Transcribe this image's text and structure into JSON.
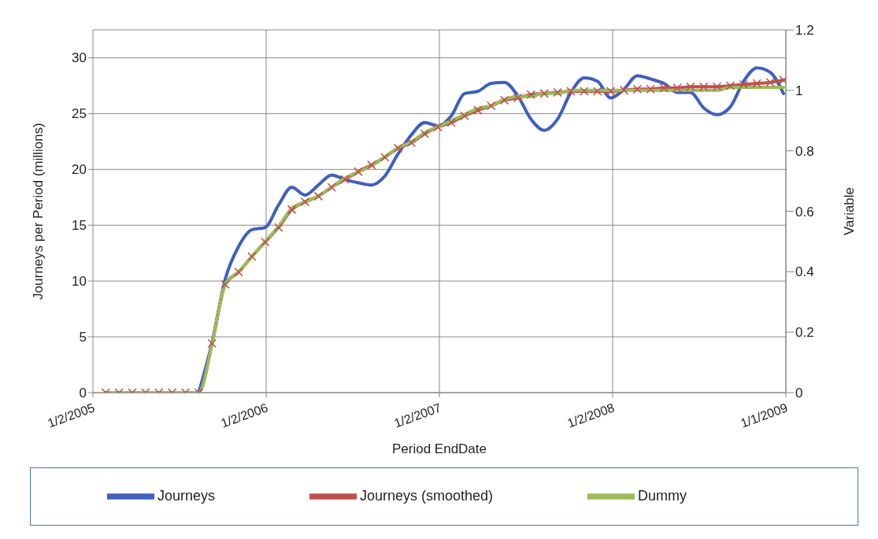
{
  "chart_data": {
    "type": "line",
    "xlabel": "Period EndDate",
    "ylabel": "Journeys per Period  (millions)",
    "y2label": "Variable",
    "x": [
      "2005-01-29",
      "2005-02-26",
      "2005-03-26",
      "2005-04-23",
      "2005-05-21",
      "2005-06-18",
      "2005-07-16",
      "2005-08-13",
      "2005-09-10",
      "2005-10-08",
      "2005-11-05",
      "2005-12-03",
      "2005-12-31",
      "2006-01-28",
      "2006-02-25",
      "2006-03-25",
      "2006-04-22",
      "2006-05-20",
      "2006-06-17",
      "2006-07-15",
      "2006-08-12",
      "2006-09-09",
      "2006-10-07",
      "2006-11-04",
      "2006-12-02",
      "2006-12-30",
      "2007-01-27",
      "2007-02-24",
      "2007-03-24",
      "2007-04-21",
      "2007-05-19",
      "2007-06-16",
      "2007-07-14",
      "2007-08-11",
      "2007-09-08",
      "2007-10-06",
      "2007-11-03",
      "2007-12-01",
      "2007-12-29",
      "2008-01-26",
      "2008-02-23",
      "2008-03-22",
      "2008-04-19",
      "2008-05-17",
      "2008-06-14",
      "2008-07-12",
      "2008-08-09",
      "2008-09-06",
      "2008-10-04",
      "2008-11-01",
      "2008-11-29",
      "2008-12-27"
    ],
    "series": [
      {
        "name": "Journeys",
        "color": "#3f5fc0",
        "marker": "none",
        "values": [
          null,
          null,
          null,
          null,
          null,
          null,
          null,
          0,
          4.5,
          10.2,
          13.1,
          14.6,
          14.8,
          16.8,
          18.4,
          17.7,
          18.6,
          19.5,
          19.1,
          18.8,
          18.6,
          19.4,
          21.4,
          23.1,
          24.2,
          23.9,
          24.8,
          26.8,
          27.0,
          27.7,
          27.8,
          26.6,
          24.5,
          23.5,
          24.5,
          26.9,
          28.2,
          27.9,
          26.4,
          27.2,
          28.4,
          28.1,
          27.7,
          26.9,
          26.9,
          25.5,
          24.9,
          25.6,
          27.9,
          29.1,
          28.7,
          26.8
        ]
      },
      {
        "name": "Journeys (smoothed)",
        "color": "#c0504d",
        "marker": "cross",
        "values": [
          0,
          0,
          0,
          0,
          0,
          0,
          0,
          0,
          4.4,
          9.7,
          10.8,
          12.2,
          13.5,
          14.8,
          16.4,
          17.1,
          17.6,
          18.4,
          19.1,
          19.8,
          20.4,
          21.1,
          21.9,
          22.4,
          23.2,
          23.8,
          24.2,
          24.8,
          25.3,
          25.7,
          26.2,
          26.4,
          26.7,
          26.8,
          26.9,
          27.0,
          27.0,
          27.0,
          27.0,
          27.1,
          27.2,
          27.2,
          27.3,
          27.3,
          27.4,
          27.4,
          27.4,
          27.5,
          27.6,
          27.7,
          27.8,
          28.0
        ]
      },
      {
        "name": "Dummy",
        "color": "#9bbb59",
        "marker": "none",
        "axis": "y2",
        "values": [
          0,
          0,
          0,
          0,
          0,
          0,
          0,
          0,
          0.16,
          0.36,
          0.4,
          0.45,
          0.5,
          0.55,
          0.61,
          0.63,
          0.65,
          0.68,
          0.71,
          0.73,
          0.75,
          0.78,
          0.81,
          0.83,
          0.86,
          0.88,
          0.9,
          0.92,
          0.94,
          0.95,
          0.97,
          0.98,
          0.98,
          0.99,
          0.99,
          1.0,
          1.0,
          1.0,
          1.0,
          1.0,
          1.0,
          1.0,
          1.0,
          1.0,
          1.0,
          1.0,
          1.0,
          1.01,
          1.01,
          1.01,
          1.01,
          1.01
        ]
      }
    ],
    "xlim": [
      "2005-01-02",
      "2009-01-01"
    ],
    "xticks": [
      {
        "value": "2005-01-02",
        "label": "1/2/2005"
      },
      {
        "value": "2006-01-02",
        "label": "1/2/2006"
      },
      {
        "value": "2007-01-02",
        "label": "1/2/2007"
      },
      {
        "value": "2008-01-02",
        "label": "1/2/2008"
      },
      {
        "value": "2009-01-01",
        "label": "1/1/2009"
      }
    ],
    "ylim": [
      0,
      32.5
    ],
    "yticks": [
      0,
      5,
      10,
      15,
      20,
      25,
      30
    ],
    "y2lim": [
      0,
      1.2
    ],
    "y2ticks": [
      0,
      0.2,
      0.4,
      0.6,
      0.8,
      1,
      1.2
    ],
    "grid": true,
    "legend": "bottom",
    "line_style": "solid"
  }
}
